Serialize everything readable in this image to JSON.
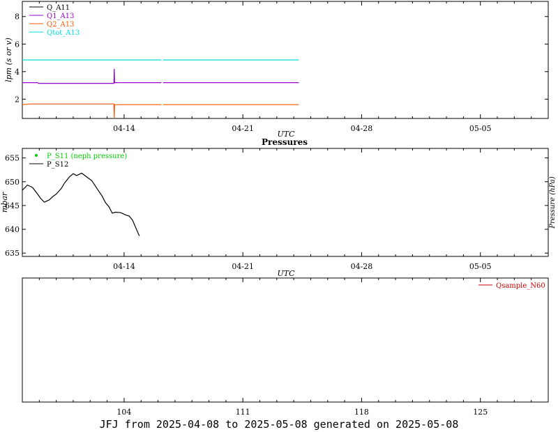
{
  "footer": "JFJ from 2025-04-08 to 2025-05-08 generated on 2025-05-08",
  "chart_data": [
    {
      "id": "flows",
      "type": "line",
      "title": "",
      "xlabel": "UTC",
      "ylabel": "lpm (s or v)",
      "xlim": [
        0,
        31
      ],
      "ylim": [
        0.6,
        9.1
      ],
      "xticks": [
        {
          "x": 6,
          "label": "04-14"
        },
        {
          "x": 13,
          "label": "04-21"
        },
        {
          "x": 20,
          "label": "04-28"
        },
        {
          "x": 27,
          "label": "05-05"
        }
      ],
      "yticks": [
        2,
        4,
        6,
        8
      ],
      "legend": "top-left",
      "series": [
        {
          "name": "Q_A11",
          "color": "#000000",
          "points": []
        },
        {
          "name": "Q1_A13",
          "color": "#9900cc",
          "points": [
            [
              0,
              3.2
            ],
            [
              0.9,
              3.2
            ],
            [
              0.95,
              3.15
            ],
            [
              5.4,
              3.15
            ],
            [
              5.42,
              4.2
            ],
            [
              5.44,
              3.2
            ],
            [
              8.2,
              3.2
            ],
            null,
            [
              8.3,
              3.2
            ],
            [
              16.3,
              3.2
            ]
          ]
        },
        {
          "name": "Q2_A13",
          "color": "#ff5500",
          "points": [
            [
              0,
              1.6
            ],
            [
              0.5,
              1.65
            ],
            [
              5.4,
              1.65
            ],
            [
              5.42,
              0.65
            ],
            [
              5.44,
              1.6
            ],
            [
              8.2,
              1.6
            ],
            null,
            [
              8.3,
              1.6
            ],
            [
              16.3,
              1.6
            ]
          ]
        },
        {
          "name": "Qtot_A13",
          "color": "#00dddd",
          "points": [
            [
              0,
              4.85
            ],
            [
              8.2,
              4.85
            ],
            null,
            [
              8.3,
              4.85
            ],
            [
              16.3,
              4.85
            ]
          ]
        }
      ]
    },
    {
      "id": "pressures",
      "type": "line",
      "title": "Pressures",
      "xlabel": "UTC",
      "ylabel": "mbar",
      "y2label": "Pressure (hPa)",
      "xlim": [
        0,
        31
      ],
      "ylim": [
        634.3,
        657
      ],
      "xticks": [
        {
          "x": 6,
          "label": "04-14"
        },
        {
          "x": 13,
          "label": "04-21"
        },
        {
          "x": 20,
          "label": "04-28"
        },
        {
          "x": 27,
          "label": "05-05"
        }
      ],
      "yticks": [
        635,
        640,
        645,
        650,
        655
      ],
      "legend": "top-left",
      "series": [
        {
          "name": "P_S11 (neph pressure)",
          "color": "#00cc00",
          "marker": "dot",
          "points": []
        },
        {
          "name": "P_S12",
          "color": "#000000",
          "points": [
            [
              0,
              648.2
            ],
            [
              0.3,
              649.3
            ],
            [
              0.6,
              648.8
            ],
            [
              0.9,
              647.4
            ],
            [
              1.1,
              646.4
            ],
            [
              1.3,
              645.7
            ],
            [
              1.6,
              646.2
            ],
            [
              1.8,
              646.9
            ],
            [
              2.0,
              647.4
            ],
            [
              2.3,
              648.6
            ],
            [
              2.5,
              649.8
            ],
            [
              2.8,
              651.1
            ],
            [
              3.0,
              651.7
            ],
            [
              3.2,
              651.3
            ],
            [
              3.5,
              651.8
            ],
            [
              3.8,
              651.0
            ],
            [
              4.1,
              650.2
            ],
            [
              4.4,
              648.6
            ],
            [
              4.7,
              647.0
            ],
            [
              4.9,
              645.6
            ],
            [
              5.1,
              644.8
            ],
            [
              5.3,
              643.4
            ],
            [
              5.5,
              643.6
            ],
            [
              5.8,
              643.5
            ],
            [
              6.1,
              643.0
            ],
            [
              6.3,
              642.8
            ],
            [
              6.5,
              641.9
            ],
            [
              6.7,
              640.2
            ],
            [
              6.9,
              638.6
            ]
          ]
        }
      ]
    },
    {
      "id": "sample-flow",
      "type": "line",
      "title": "",
      "xlabel": "",
      "ylabel": "",
      "xlim": [
        0,
        31
      ],
      "xticks": [
        {
          "x": 6,
          "label": "104"
        },
        {
          "x": 13,
          "label": "111"
        },
        {
          "x": 20,
          "label": "118"
        },
        {
          "x": 27,
          "label": "125"
        }
      ],
      "yticks": [],
      "legend": "top-right",
      "series": [
        {
          "name": "Qsample_N60",
          "color": "#cc0000",
          "points": []
        }
      ]
    }
  ]
}
